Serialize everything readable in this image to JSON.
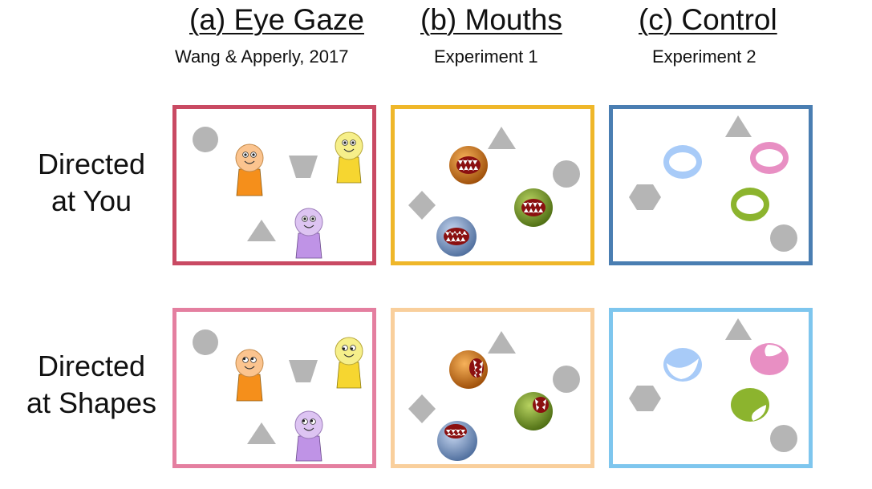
{
  "columns": [
    {
      "title": "(a) Eye Gaze",
      "subtitle": "Wang & Apperly, 2017"
    },
    {
      "title": "(b) Mouths",
      "subtitle": "Experiment 1"
    },
    {
      "title": "(c) Control",
      "subtitle": "Experiment 2"
    }
  ],
  "rows": [
    {
      "line1": "Directed",
      "line2": "at You"
    },
    {
      "line1": "Directed",
      "line2": "at Shapes"
    }
  ],
  "colors": {
    "eye_gaze_you": "#c94a63",
    "eye_gaze_shapes": "#e47fa0",
    "mouths_you": "#efb72a",
    "mouths_shapes": "#f9cf9c",
    "control_you": "#4a7eb2",
    "control_shapes": "#7ec6ee",
    "shape_gray": "#b5b5b5",
    "avatar_orange": "#f58f1b",
    "avatar_yellow": "#f6d630",
    "avatar_purple": "#bf93e6"
  }
}
